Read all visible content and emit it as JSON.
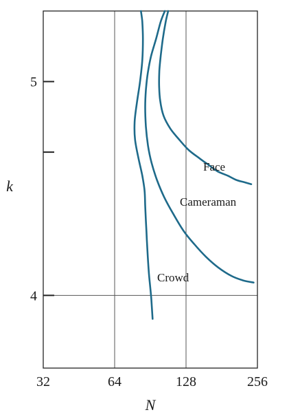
{
  "chart_data": {
    "type": "line",
    "title": "",
    "xlabel": "N",
    "ylabel": "k",
    "x_scale": "log2",
    "xlim": [
      32,
      256
    ],
    "ylim": [
      3.66,
      5.33
    ],
    "x_ticks": [
      32,
      64,
      128,
      256
    ],
    "x_tick_labels": [
      "32",
      "64",
      "128",
      "256"
    ],
    "y_ticks": [
      4.0,
      4.67,
      5.0
    ],
    "y_tick_labels": [
      "4",
      "",
      "5"
    ],
    "grid": {
      "vertical": [
        64,
        128
      ],
      "horizontal": [
        4.0
      ]
    },
    "color": "#1e6a8a",
    "legend": "none",
    "series": [
      {
        "name": "Face",
        "label": "Face",
        "x": [
          107.6,
          105.1,
          102.2,
          100.1,
          98.8,
          98.6,
          99.6,
          102.9,
          109.9,
          119.5,
          131.3,
          146.3,
          159.5,
          173.9,
          191.8,
          208.2,
          224.4,
          241.1
        ],
        "y": [
          5.33,
          5.28,
          5.2,
          5.12,
          5.05,
          4.98,
          4.91,
          4.84,
          4.78,
          4.73,
          4.68,
          4.64,
          4.61,
          4.58,
          4.56,
          4.54,
          4.53,
          4.52
        ]
      },
      {
        "name": "Cameraman",
        "label": "Cameraman",
        "x": [
          104.2,
          100.1,
          95.7,
          91.2,
          88.3,
          86.7,
          86.1,
          86.7,
          88.5,
          91.6,
          96.5,
          103.5,
          113.2,
          125.3,
          138.6,
          155.5,
          175.2,
          199.8,
          222.9,
          246.7
        ],
        "y": [
          5.33,
          5.28,
          5.2,
          5.12,
          5.04,
          4.96,
          4.88,
          4.79,
          4.7,
          4.62,
          4.54,
          4.46,
          4.38,
          4.3,
          4.24,
          4.18,
          4.13,
          4.09,
          4.07,
          4.06
        ]
      },
      {
        "name": "Crowd",
        "label": "Crowd",
        "x": [
          82.6,
          83.7,
          84.2,
          83.7,
          81.9,
          79.4,
          77.7,
          78.0,
          80.7,
          83.7,
          85.6,
          86.1,
          86.7,
          87.5,
          88.3,
          89.3,
          90.4,
          91.4,
          92.5
        ],
        "y": [
          5.33,
          5.28,
          5.2,
          5.1,
          5.0,
          4.9,
          4.81,
          4.73,
          4.64,
          4.56,
          4.49,
          4.42,
          4.35,
          4.26,
          4.18,
          4.1,
          4.04,
          3.98,
          3.89
        ]
      }
    ]
  }
}
